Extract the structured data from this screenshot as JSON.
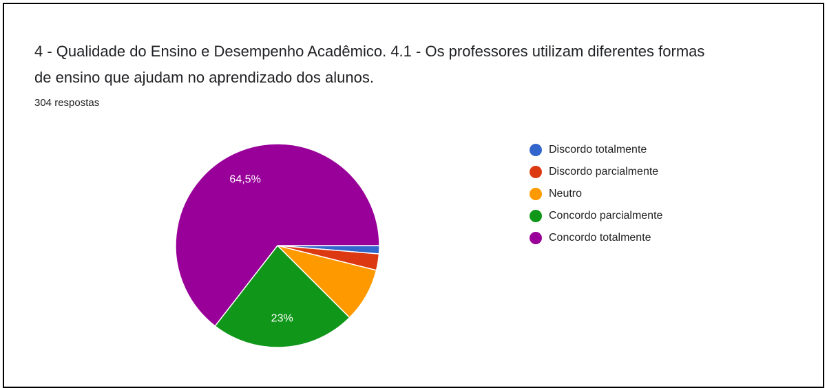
{
  "chart_data": {
    "type": "pie",
    "title": [
      "4 - Qualidade do Ensino e Desempenho Acadêmico.  4.1 - Os professores utilizam diferentes formas",
      "de ensino que ajudam no aprendizado dos alunos."
    ],
    "subtitle": "304 respostas",
    "categories": [
      "Discordo totalmente",
      "Discordo parcialmente",
      "Neutro",
      "Concordo parcialmente",
      "Concordo totalmente"
    ],
    "values": [
      1.3,
      2.6,
      8.6,
      23,
      64.5
    ],
    "value_labels": [
      null,
      null,
      null,
      "23%",
      "64,5%"
    ],
    "colors": [
      "#3366cc",
      "#dc3912",
      "#ff9900",
      "#109618",
      "#990099"
    ],
    "legend": "right"
  }
}
